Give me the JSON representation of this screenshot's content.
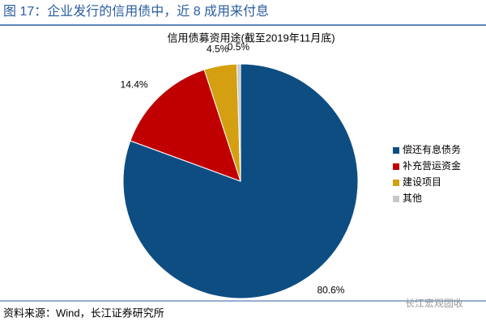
{
  "header": {
    "title": "图 17：企业发行的信用债中，近 8 成用来付息"
  },
  "chart_data": {
    "type": "pie",
    "title": "信用债募资用途(截至2019年11月底)",
    "categories": [
      "偿还有息债务",
      "补充营运资金",
      "建设项目",
      "其他"
    ],
    "values": [
      80.6,
      14.4,
      4.5,
      0.5
    ],
    "value_labels": [
      "80.6%",
      "14.4%",
      "4.5%",
      "0.5%"
    ],
    "colors": [
      "#0e4d82",
      "#c00000",
      "#d4a012",
      "#c8c8c8"
    ]
  },
  "footer": {
    "source": "资料来源：Wind，长江证券研究所"
  },
  "watermark": "长江宏观固收"
}
